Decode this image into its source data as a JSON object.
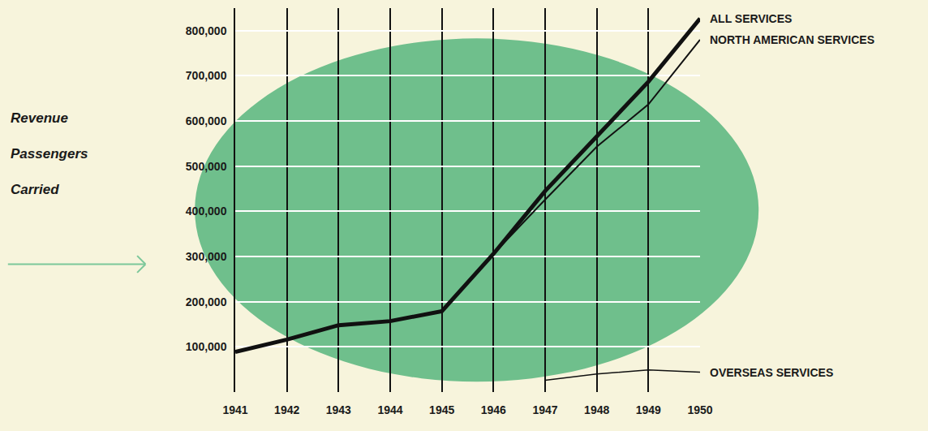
{
  "chart_data": {
    "type": "line",
    "y_label": "Revenue Passengers Carried",
    "x": [
      1941,
      1942,
      1943,
      1944,
      1945,
      1946,
      1947,
      1948,
      1949,
      1950
    ],
    "xlim": [
      1941,
      1950
    ],
    "xticks": [
      1941,
      1942,
      1943,
      1944,
      1945,
      1946,
      1947,
      1948,
      1949,
      1950
    ],
    "ylim": [
      0,
      850000
    ],
    "yticks": [
      {
        "value": 100000,
        "label": "100,000"
      },
      {
        "value": 200000,
        "label": "200,000"
      },
      {
        "value": 300000,
        "label": "300,000"
      },
      {
        "value": 400000,
        "label": "400,000"
      },
      {
        "value": 500000,
        "label": "500,000"
      },
      {
        "value": 600000,
        "label": "600,000"
      },
      {
        "value": 700000,
        "label": "700,000"
      },
      {
        "value": 800000,
        "label": "800,000"
      }
    ],
    "grid": true,
    "series": [
      {
        "name": "ALL SERVICES",
        "color": "#111111",
        "values": [
          89000,
          116000,
          148000,
          157000,
          179000,
          306000,
          445000,
          565000,
          687000,
          827000
        ]
      },
      {
        "name": "NORTH AMERICAN SERVICES",
        "color": "#111111",
        "values": [
          89000,
          116000,
          148000,
          157000,
          179000,
          306000,
          426000,
          543000,
          637000,
          780000
        ]
      },
      {
        "name": "OVERSEAS SERVICES",
        "color": "#111111",
        "values": [
          null,
          null,
          null,
          null,
          null,
          null,
          26000,
          40000,
          49000,
          44000
        ]
      }
    ]
  }
}
